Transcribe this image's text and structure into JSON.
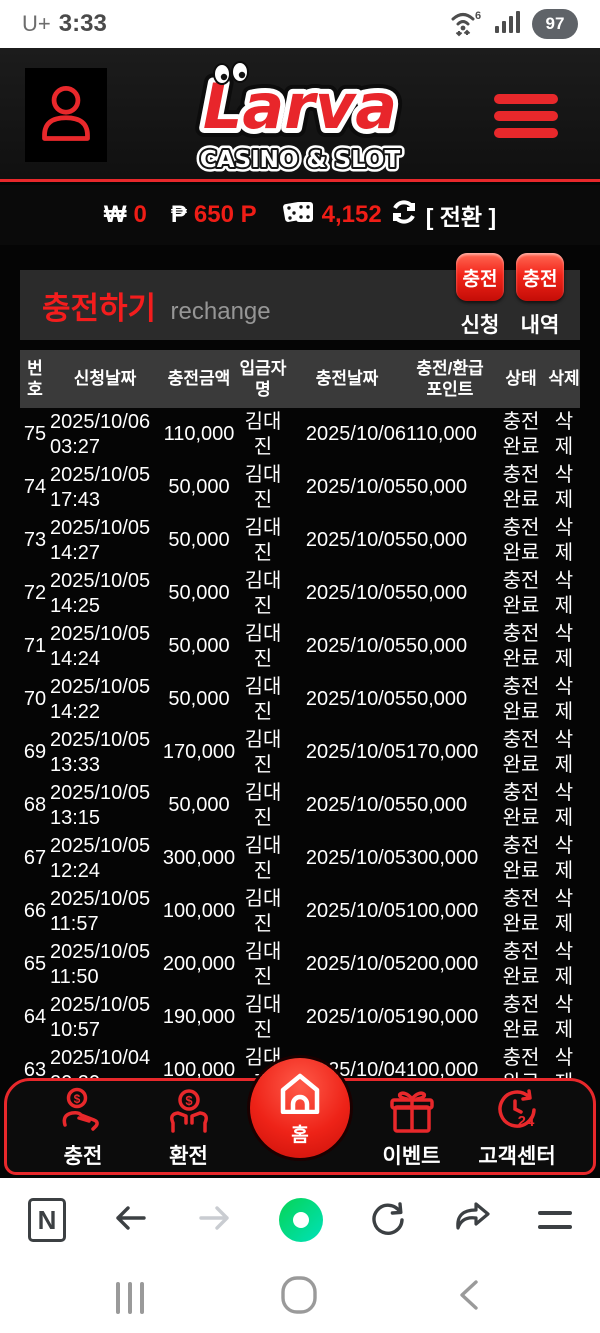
{
  "colors": {
    "accent_red": "#e8282b",
    "bright_red": "#ef1d16",
    "naver_green": "#03cf5d",
    "panel_gray": "#2b2b2b"
  },
  "status_bar": {
    "carrier": "U+",
    "time": "3:33",
    "battery": "97",
    "wifi_gen": "6"
  },
  "header": {
    "logo_title": "Larva",
    "logo_subtitle": "CASINO & SLOT"
  },
  "balance_bar": {
    "won_symbol": "₩",
    "won_value": "0",
    "point_symbol": "₱",
    "point_value": "650 P",
    "chip_value": "4,152",
    "convert_label": "[ 전환 ]"
  },
  "section": {
    "title": "충전하기",
    "subtitle": "rechange",
    "buttons": [
      {
        "label": "충전",
        "caption": "신청"
      },
      {
        "label": "충전",
        "caption": "내역"
      }
    ]
  },
  "table": {
    "headers": [
      "번호",
      "신청날짜",
      "충전금액",
      "입금자명",
      "충전날짜",
      "충전/환급 포인트",
      "상태",
      "삭제"
    ],
    "rows": [
      {
        "no": "75",
        "req_date": "2025/10/06",
        "req_time": "03:27",
        "amount": "110,000",
        "depositor": "김대진",
        "charge_date": "2025/10/06",
        "points": "110,000",
        "status": "충전완료",
        "delete_label": "삭제"
      },
      {
        "no": "74",
        "req_date": "2025/10/05",
        "req_time": "17:43",
        "amount": "50,000",
        "depositor": "김대진",
        "charge_date": "2025/10/05",
        "points": "50,000",
        "status": "충전완료",
        "delete_label": "삭제"
      },
      {
        "no": "73",
        "req_date": "2025/10/05",
        "req_time": "14:27",
        "amount": "50,000",
        "depositor": "김대진",
        "charge_date": "2025/10/05",
        "points": "50,000",
        "status": "충전완료",
        "delete_label": "삭제"
      },
      {
        "no": "72",
        "req_date": "2025/10/05",
        "req_time": "14:25",
        "amount": "50,000",
        "depositor": "김대진",
        "charge_date": "2025/10/05",
        "points": "50,000",
        "status": "충전완료",
        "delete_label": "삭제"
      },
      {
        "no": "71",
        "req_date": "2025/10/05",
        "req_time": "14:24",
        "amount": "50,000",
        "depositor": "김대진",
        "charge_date": "2025/10/05",
        "points": "50,000",
        "status": "충전완료",
        "delete_label": "삭제"
      },
      {
        "no": "70",
        "req_date": "2025/10/05",
        "req_time": "14:22",
        "amount": "50,000",
        "depositor": "김대진",
        "charge_date": "2025/10/05",
        "points": "50,000",
        "status": "충전완료",
        "delete_label": "삭제"
      },
      {
        "no": "69",
        "req_date": "2025/10/05",
        "req_time": "13:33",
        "amount": "170,000",
        "depositor": "김대진",
        "charge_date": "2025/10/05",
        "points": "170,000",
        "status": "충전완료",
        "delete_label": "삭제"
      },
      {
        "no": "68",
        "req_date": "2025/10/05",
        "req_time": "13:15",
        "amount": "50,000",
        "depositor": "김대진",
        "charge_date": "2025/10/05",
        "points": "50,000",
        "status": "충전완료",
        "delete_label": "삭제"
      },
      {
        "no": "67",
        "req_date": "2025/10/05",
        "req_time": "12:24",
        "amount": "300,000",
        "depositor": "김대진",
        "charge_date": "2025/10/05",
        "points": "300,000",
        "status": "충전완료",
        "delete_label": "삭제"
      },
      {
        "no": "66",
        "req_date": "2025/10/05",
        "req_time": "11:57",
        "amount": "100,000",
        "depositor": "김대진",
        "charge_date": "2025/10/05",
        "points": "100,000",
        "status": "충전완료",
        "delete_label": "삭제"
      },
      {
        "no": "65",
        "req_date": "2025/10/05",
        "req_time": "11:50",
        "amount": "200,000",
        "depositor": "김대진",
        "charge_date": "2025/10/05",
        "points": "200,000",
        "status": "충전완료",
        "delete_label": "삭제"
      },
      {
        "no": "64",
        "req_date": "2025/10/05",
        "req_time": "10:57",
        "amount": "190,000",
        "depositor": "김대진",
        "charge_date": "2025/10/05",
        "points": "190,000",
        "status": "충전완료",
        "delete_label": "삭제"
      },
      {
        "no": "63",
        "req_date": "2025/10/04",
        "req_time": "20:20",
        "amount": "100,000",
        "depositor": "김대진",
        "charge_date": "2025/10/04",
        "points": "100,000",
        "status": "충전완료",
        "delete_label": "삭제"
      }
    ]
  },
  "bottom_nav": {
    "items": [
      {
        "label": "충전"
      },
      {
        "label": "환전"
      },
      {
        "label": "홈"
      },
      {
        "label": "이벤트"
      },
      {
        "label": "고객센터"
      }
    ]
  },
  "browser_bar": {
    "naver_label": "N"
  }
}
